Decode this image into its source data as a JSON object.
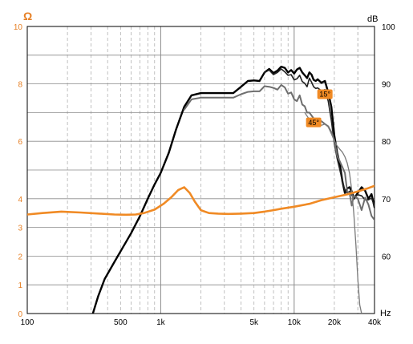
{
  "chart_data": {
    "type": "line",
    "x_scale": "log",
    "xlim": [
      100,
      40000
    ],
    "x_ticks": [
      100,
      500,
      1000,
      5000,
      10000,
      20000,
      40000
    ],
    "x_tick_labels": [
      "100",
      "500",
      "1k",
      "5k",
      "10k",
      "20k",
      "40k"
    ],
    "x_unit": "Hz",
    "y_left": {
      "unit": "Ω",
      "lim": [
        0,
        10
      ],
      "ticks": [
        0,
        1,
        2,
        3,
        4,
        6,
        8,
        10
      ],
      "tick_labels": [
        "0",
        "1",
        "2",
        "3",
        "4",
        "6",
        "8",
        "10"
      ],
      "color": "#e67e22"
    },
    "y_right": {
      "unit": "dB",
      "lim": [
        50,
        100
      ],
      "ticks": [
        60,
        70,
        80,
        90,
        100
      ],
      "tick_labels": [
        "60",
        "70",
        "80",
        "90",
        "100"
      ]
    },
    "grid": true,
    "annotations": [
      {
        "text": "15°",
        "x": 17000,
        "y_db": 88.2
      },
      {
        "text": "45°",
        "x": 14000,
        "y_db": 83.3
      }
    ],
    "series": [
      {
        "axis": "right",
        "color": "#000000",
        "width": 2.4,
        "x": [
          310,
          340,
          380,
          450,
          520,
          600,
          700,
          800,
          900,
          1000,
          1150,
          1300,
          1500,
          1700,
          2000,
          2500,
          3000,
          3500,
          4000,
          4500,
          5000,
          5500,
          6000,
          6500,
          7000,
          7500,
          8000,
          8500,
          9000,
          9500,
          10000,
          10500,
          11000,
          11500,
          12000,
          12500,
          13000,
          13500,
          14000,
          14500,
          15000,
          16000,
          17000,
          18000,
          19000,
          20000,
          21000,
          22000,
          23000,
          24000,
          25000,
          26000,
          27000,
          28000,
          30000,
          32000,
          34000,
          36000,
          38000,
          40000
        ],
        "y": [
          50,
          53,
          56,
          59,
          61.5,
          64,
          67,
          70,
          72.5,
          74.5,
          78,
          82,
          86,
          88,
          88.4,
          88.4,
          88.4,
          88.4,
          89.5,
          90.5,
          90.6,
          90.5,
          92,
          92.6,
          91.9,
          92.3,
          93,
          92.8,
          92,
          92.4,
          91.8,
          92.5,
          92.8,
          92,
          91.5,
          91,
          92,
          91.6,
          90.7,
          90.5,
          90.8,
          90.2,
          90.5,
          88.5,
          86,
          81,
          78,
          76,
          73,
          71,
          71.8,
          72,
          71.3,
          70,
          71,
          72,
          71.4,
          70,
          70.8,
          68.5
        ]
      },
      {
        "axis": "right",
        "color": "#222222",
        "width": 1.6,
        "x": [
          6000,
          6500,
          7000,
          7500,
          8000,
          8500,
          9000,
          9500,
          10000,
          10500,
          11000,
          11500,
          12000,
          12500,
          13000,
          13500,
          14000,
          14500,
          15000,
          16000,
          17000,
          18000,
          19000,
          20000,
          21000,
          22000,
          23000,
          24000,
          25000,
          26000,
          27000,
          28000,
          30000,
          32000,
          34000,
          36000,
          38000,
          40000
        ],
        "y": [
          92,
          92.4,
          91.6,
          92,
          92.6,
          92.1,
          91.5,
          91.6,
          90.7,
          90.9,
          91.5,
          90.4,
          90.1,
          89.5,
          91,
          90.3,
          89.5,
          89.2,
          89.3,
          88.8,
          89,
          87,
          83.6,
          79.6,
          77,
          75,
          73,
          71.5,
          71,
          71.3,
          70.6,
          70.3,
          70.7,
          70.5,
          69.8,
          69.8,
          70.1,
          68.7
        ]
      },
      {
        "axis": "right",
        "color": "#6e6e6e",
        "width": 2,
        "x": [
          1500,
          1700,
          2000,
          2500,
          3000,
          3500,
          4000,
          4500,
          5000,
          5500,
          6000,
          6500,
          7000,
          7500,
          8000,
          8500,
          9000,
          9500,
          10000,
          10500,
          11000,
          11500,
          12000,
          12500,
          13000,
          14000,
          15000,
          16000,
          17000,
          18000,
          19000,
          20000,
          21000,
          22000,
          23000,
          24000,
          25000,
          26000,
          27000,
          28000,
          30000,
          32000,
          34000,
          36000,
          38000,
          40000
        ],
        "y": [
          85.5,
          87.3,
          87.6,
          87.6,
          87.6,
          87.6,
          88.2,
          88.6,
          88.7,
          88.7,
          89.6,
          89.5,
          89.3,
          89,
          89.8,
          89.4,
          88.3,
          88.5,
          87.3,
          87,
          88,
          86.4,
          86.1,
          85,
          85,
          84,
          83.6,
          83.5,
          83,
          82.6,
          81.6,
          80.2,
          77.5,
          76.5,
          75.5,
          74.5,
          71.2,
          71,
          68.8,
          70.5,
          70,
          68,
          70.2,
          69,
          67,
          66.3
        ]
      },
      {
        "axis": "right",
        "color": "#7a7a7a",
        "width": 1.3,
        "x": [
          12000,
          13000,
          14000,
          15000,
          16000,
          17000,
          18000,
          19000,
          20000,
          21000,
          22000,
          23000,
          24000,
          25000,
          26000,
          27000,
          28000,
          29000,
          30000,
          31000,
          32000
        ],
        "y": [
          85,
          83.8,
          83.2,
          82.9,
          82.8,
          83,
          82.5,
          81.3,
          80.1,
          79.2,
          78.6,
          78.1,
          77.3,
          76.2,
          74.4,
          71.5,
          67.4,
          62,
          56,
          51.5,
          50
        ]
      },
      {
        "axis": "left",
        "color": "#f08a24",
        "width": 2.6,
        "x": [
          100,
          130,
          180,
          250,
          350,
          450,
          550,
          650,
          750,
          900,
          1050,
          1200,
          1350,
          1500,
          1650,
          1800,
          2000,
          2300,
          2700,
          3200,
          4000,
          5000,
          6000,
          7000,
          8000,
          10000,
          13000,
          16000,
          20000,
          25000,
          30000,
          35000,
          40000
        ],
        "y": [
          3.45,
          3.5,
          3.55,
          3.52,
          3.48,
          3.45,
          3.44,
          3.45,
          3.5,
          3.62,
          3.82,
          4.05,
          4.3,
          4.4,
          4.2,
          3.9,
          3.6,
          3.5,
          3.48,
          3.47,
          3.48,
          3.5,
          3.55,
          3.6,
          3.65,
          3.72,
          3.82,
          3.95,
          4.05,
          4.15,
          4.25,
          4.35,
          4.45
        ]
      }
    ]
  }
}
